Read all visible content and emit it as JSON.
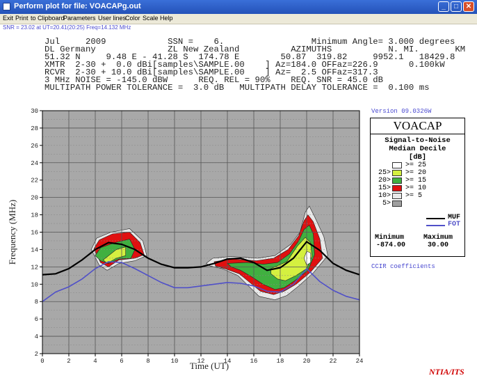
{
  "window": {
    "title": "Perform plot for file: VOACAPg.out",
    "buttons": [
      "_",
      "□",
      "✕"
    ]
  },
  "menu": [
    "Exit",
    "Print",
    "to Clipboard",
    "Parameters",
    "User lines",
    "Color",
    "Scale",
    "Help"
  ],
  "status": "SNR = 23.02 at UT=20.41(20:25) Freq=14.132 MHz",
  "header": {
    "line1": "Jul     2009            SSN =    6.                 Minimum Angle= 3.000 degrees",
    "line2": "DL Germany              ZL New Zealand          AZIMUTHS           N. MI.       KM",
    "line3": "51.32 N     9.48 E - 41.28 S  174.78 E        50.87  319.82     9952.1   18429.8",
    "line4": "XMTR  2-30 +  0.0 dBi[samples\\SAMPLE.00    ] Az=184.0 OFFaz=226.9      0.100kW",
    "line5": "RCVR  2-30 + 10.0 dBi[samples\\SAMPLE.00    ] Az=  2.5 OFFaz=317.3",
    "line6": "3 MHz NOISE = -145.0 dBW      REQ. REL = 90%    REQ. SNR = 45.0 dB",
    "line7": "MULTIPATH POWER TOLERANCE =  3.0 dB   MULTIPATH DELAY TOLERANCE =  0.100 ms"
  },
  "chart_data": {
    "type": "area",
    "xlabel": "Time (UT)",
    "ylabel": "Frequency (MHz)",
    "xlim": [
      0,
      24
    ],
    "ylim": [
      2,
      30
    ],
    "x_ticks": [
      0,
      2,
      4,
      6,
      8,
      10,
      12,
      14,
      16,
      18,
      20,
      22,
      24
    ],
    "y_ticks": [
      2,
      4,
      6,
      8,
      10,
      12,
      14,
      16,
      18,
      20,
      22,
      24,
      26,
      28,
      30
    ],
    "grid": true,
    "background_color": "#a8a8a8",
    "series": [
      {
        "name": "MUF",
        "color": "#000000",
        "x": [
          0,
          1,
          2,
          3,
          4,
          5,
          6,
          7,
          8,
          9,
          10,
          11,
          12,
          13,
          14,
          15,
          16,
          17,
          18,
          19,
          20,
          21,
          22,
          23,
          24
        ],
        "y": [
          11.1,
          11.2,
          11.8,
          12.8,
          14.0,
          14.8,
          14.6,
          14.0,
          13.0,
          12.3,
          11.9,
          11.9,
          12.0,
          12.4,
          12.9,
          13.0,
          12.5,
          11.6,
          11.9,
          13.0,
          14.9,
          13.9,
          12.4,
          11.6,
          11.1
        ]
      },
      {
        "name": "FOT",
        "color": "#5050c8",
        "x": [
          0,
          1,
          2,
          3,
          4,
          5,
          6,
          7,
          8,
          9,
          10,
          11,
          12,
          13,
          14,
          15,
          16,
          17,
          18,
          19,
          20,
          21,
          22,
          23,
          24
        ],
        "y": [
          8.0,
          9.1,
          9.7,
          10.6,
          11.8,
          12.6,
          12.5,
          11.8,
          11.0,
          10.2,
          9.6,
          9.6,
          9.8,
          10.0,
          10.2,
          10.1,
          9.8,
          9.2,
          9.1,
          10.0,
          11.8,
          10.3,
          9.3,
          8.6,
          8.2
        ]
      }
    ],
    "contours": [
      {
        "level": "5",
        "color": "#e8e8e8",
        "regions": [
          [
            [
              3.7,
              14.0
            ],
            [
              4.1,
              15.3
            ],
            [
              5.2,
              16.0
            ],
            [
              6.6,
              16.4
            ],
            [
              7.6,
              15.0
            ],
            [
              7.9,
              13.3
            ],
            [
              7.0,
              12.7
            ],
            [
              5.8,
              12.4
            ],
            [
              4.9,
              11.6
            ],
            [
              4.3,
              12.2
            ]
          ],
          [
            [
              12.4,
              12.4
            ],
            [
              12.9,
              13.0
            ],
            [
              14.3,
              13.2
            ],
            [
              16.3,
              13.0
            ],
            [
              17.6,
              13.3
            ],
            [
              18.8,
              14.6
            ],
            [
              19.5,
              16.0
            ],
            [
              19.9,
              18.3
            ],
            [
              20.2,
              19.0
            ],
            [
              20.6,
              17.8
            ],
            [
              21.3,
              15.5
            ],
            [
              21.6,
              13.3
            ],
            [
              20.5,
              11.3
            ],
            [
              19.4,
              9.8
            ],
            [
              18.5,
              8.7
            ],
            [
              17.6,
              8.2
            ],
            [
              16.4,
              8.6
            ],
            [
              15.6,
              9.8
            ],
            [
              14.8,
              11.0
            ],
            [
              13.6,
              11.8
            ],
            [
              12.7,
              12.1
            ]
          ]
        ]
      },
      {
        "level": "10",
        "color": "#e01010",
        "regions": [
          [
            [
              3.9,
              14.1
            ],
            [
              4.3,
              15.1
            ],
            [
              5.3,
              15.8
            ],
            [
              6.6,
              16.0
            ],
            [
              7.4,
              14.8
            ],
            [
              7.7,
              13.4
            ],
            [
              7.0,
              13.0
            ],
            [
              5.8,
              12.8
            ],
            [
              5.0,
              12.0
            ],
            [
              4.4,
              12.5
            ]
          ],
          [
            [
              13.0,
              12.6
            ],
            [
              14.4,
              12.9
            ],
            [
              16.2,
              12.7
            ],
            [
              17.5,
              13.0
            ],
            [
              18.6,
              14.0
            ],
            [
              19.4,
              15.6
            ],
            [
              19.8,
              17.3
            ],
            [
              20.1,
              18.0
            ],
            [
              20.5,
              17.2
            ],
            [
              21.0,
              15.2
            ],
            [
              21.2,
              13.0
            ],
            [
              20.3,
              11.4
            ],
            [
              19.2,
              10.0
            ],
            [
              18.3,
              9.2
            ],
            [
              17.5,
              8.8
            ],
            [
              16.5,
              9.2
            ],
            [
              15.7,
              10.2
            ],
            [
              14.9,
              11.2
            ],
            [
              13.8,
              11.8
            ],
            [
              13.1,
              12.1
            ]
          ]
        ]
      },
      {
        "level": "15",
        "color": "#40b040",
        "regions": [
          [
            [
              4.0,
              13.3
            ],
            [
              4.4,
              14.2
            ],
            [
              5.5,
              14.8
            ],
            [
              6.6,
              15.2
            ],
            [
              7.0,
              14.0
            ],
            [
              6.7,
              13.0
            ],
            [
              5.8,
              12.9
            ],
            [
              5.0,
              12.4
            ],
            [
              4.4,
              12.7
            ]
          ],
          [
            [
              14.0,
              12.4
            ],
            [
              15.5,
              12.5
            ],
            [
              16.7,
              12.3
            ],
            [
              17.8,
              12.5
            ],
            [
              18.7,
              13.5
            ],
            [
              19.4,
              15.0
            ],
            [
              19.8,
              16.3
            ],
            [
              20.2,
              16.8
            ],
            [
              20.5,
              15.8
            ],
            [
              20.6,
              13.4
            ],
            [
              20.1,
              11.6
            ],
            [
              19.1,
              10.4
            ],
            [
              18.3,
              9.6
            ],
            [
              17.6,
              9.4
            ],
            [
              16.7,
              10.0
            ],
            [
              15.8,
              10.9
            ],
            [
              15.0,
              11.6
            ],
            [
              14.3,
              12.0
            ]
          ]
        ]
      },
      {
        "level": "20",
        "color": "#d4f040",
        "regions": [
          [
            [
              4.6,
              12.8
            ],
            [
              5.6,
              14.0
            ],
            [
              6.3,
              14.3
            ],
            [
              6.3,
              13.3
            ],
            [
              5.6,
              13.0
            ],
            [
              4.9,
              12.4
            ]
          ],
          [
            [
              17.3,
              11.8
            ],
            [
              18.5,
              12.6
            ],
            [
              19.3,
              14.4
            ],
            [
              19.9,
              15.4
            ],
            [
              20.3,
              14.8
            ],
            [
              20.4,
              13.2
            ],
            [
              20.0,
              11.8
            ],
            [
              19.2,
              11.0
            ],
            [
              18.4,
              10.4
            ],
            [
              17.8,
              10.6
            ],
            [
              17.3,
              11.2
            ]
          ]
        ]
      },
      {
        "level": "25",
        "color": "#ffffff",
        "regions": [
          [
            [
              19.8,
              13.0
            ],
            [
              20.0,
              13.8
            ],
            [
              20.3,
              13.6
            ],
            [
              20.3,
              12.5
            ],
            [
              20.0,
              12.2
            ]
          ]
        ]
      }
    ]
  },
  "legend": {
    "title": "VOACAP",
    "sub1": "Signal-to-Noise",
    "sub2": "Median Decile",
    "sub3": "[dB]",
    "rows": [
      {
        "left": "",
        "right": ">=  25",
        "color": "#ffffff"
      },
      {
        "left": "25>",
        "right": ">=  20",
        "color": "#d4f040"
      },
      {
        "left": "20>",
        "right": ">=  15",
        "color": "#40b040"
      },
      {
        "left": "15>",
        "right": ">=  10",
        "color": "#e01010"
      },
      {
        "left": "10>",
        "right": ">=   5",
        "color": "#e8e8e8"
      },
      {
        "left": "5>",
        "right": "",
        "color": "#a0a0a0"
      }
    ],
    "muf_label": "MUF",
    "fot_label": "FOT",
    "min_label": "Minimum",
    "max_label": "Maximum",
    "min_value": "-874.00",
    "max_value": "30.00"
  },
  "version": "Version 09.0326W",
  "ccir": "CCIR coefficients",
  "footer": "NTIA/ITS"
}
